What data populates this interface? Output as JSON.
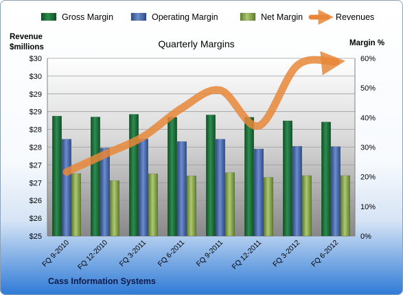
{
  "chart_data": {
    "type": "bar",
    "title": "Quarterly Margins",
    "categories": [
      "FQ 9-2010",
      "FQ 12-2010",
      "FQ 3-2011",
      "FQ 6-2011",
      "FQ 9-2011",
      "FQ 12-2011",
      "FQ 3-2012",
      "FQ 6-2012"
    ],
    "series": [
      {
        "name": "Gross Margin",
        "axis": "right",
        "color": "#1e6b3a",
        "values": [
          0.405,
          0.402,
          0.411,
          0.401,
          0.409,
          0.401,
          0.389,
          0.385
        ]
      },
      {
        "name": "Operating Margin",
        "axis": "right",
        "color": "#4a6aa8",
        "values": [
          0.327,
          0.297,
          0.328,
          0.319,
          0.327,
          0.294,
          0.303,
          0.302
        ]
      },
      {
        "name": "Net Margin",
        "axis": "right",
        "color": "#8db053",
        "values": [
          0.211,
          0.187,
          0.21,
          0.203,
          0.214,
          0.198,
          0.204,
          0.204
        ]
      },
      {
        "name": "Revenues",
        "type": "line",
        "axis": "left",
        "color": "#e8873a",
        "values": [
          26.8,
          27.3,
          27.8,
          28.6,
          29.1,
          28.1,
          29.8,
          29.9
        ]
      }
    ],
    "y_left": {
      "label": "Revenue $millions",
      "lim": [
        25,
        30
      ],
      "ticks": [
        "$25",
        "$26",
        "$26",
        "$27",
        "$27",
        "$28",
        "$28",
        "$29",
        "$29",
        "$30",
        "$30"
      ]
    },
    "y_right": {
      "label": "Margin %",
      "lim": [
        0,
        0.6
      ],
      "ticks": [
        "0%",
        "10%",
        "20%",
        "30%",
        "40%",
        "50%",
        "60%"
      ]
    },
    "grid": true,
    "legend": "top"
  },
  "footer": {
    "company": "Cass Information Systems"
  }
}
